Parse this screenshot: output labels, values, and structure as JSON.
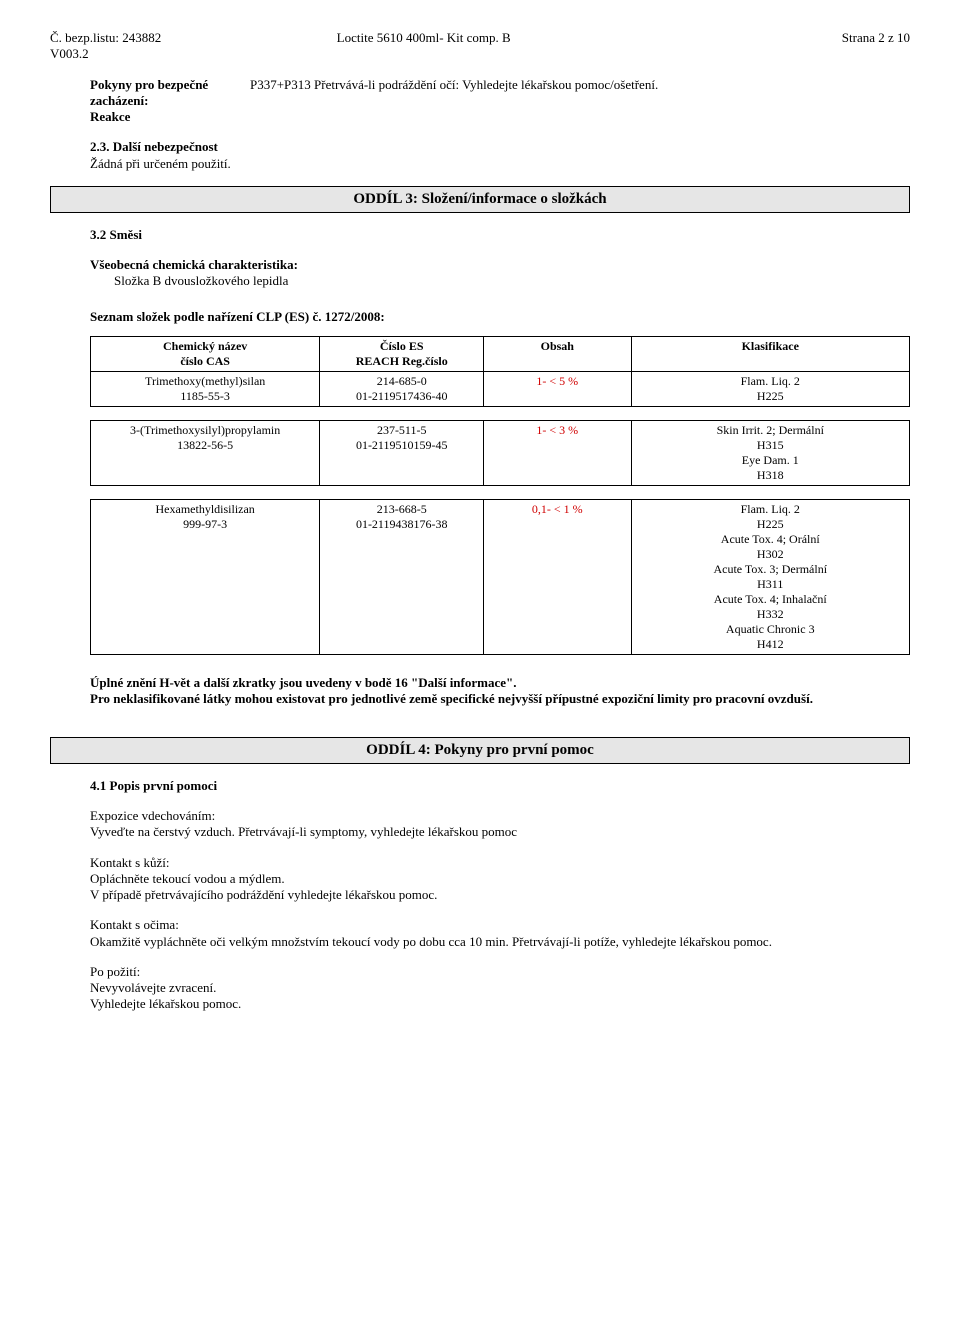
{
  "header": {
    "doc_no_label": "Č. bezp.listu:",
    "doc_no": "243882",
    "version": "V003.2",
    "product": "Loctite 5610 400ml- Kit comp. B",
    "page": "Strana 2 z 10"
  },
  "handling": {
    "label_line1": "Pokyny pro bezpečné",
    "label_line2": "zacházení:",
    "label_line3": "Reakce",
    "text": "P337+P313 Přetrvává-li podráždění očí: Vyhledejte lékařskou pomoc/ošetření."
  },
  "hazards": {
    "heading": "2.3. Další nebezpečnost",
    "text": "Žádná při určeném použití."
  },
  "section3": {
    "title": "ODDÍL 3: Složení/informace o složkách",
    "mix_heading": "3.2 Směsi",
    "char_label": "Všeobecná chemická charakteristika:",
    "char_text": "Složka B dvousložkového lepidla",
    "list_heading": "Seznam složek podle nařízení CLP (ES) č. 1272/2008:",
    "table": {
      "headers": {
        "name": "Chemický název\nčíslo CAS",
        "ec": "Číslo ES\nREACH Reg.číslo",
        "content": "Obsah",
        "class": "Klasifikace"
      },
      "rows": [
        {
          "name": "Trimethoxy(methyl)silan\n1185-55-3",
          "ec": "214-685-0\n01-2119517436-40",
          "content": "1- <   5 %",
          "content_is_red": true,
          "class": "Flam. Liq. 2\nH225"
        },
        {
          "name": "3-(Trimethoxysilyl)propylamin\n13822-56-5",
          "ec": "237-511-5\n01-2119510159-45",
          "content": "1- <   3 %",
          "content_is_red": true,
          "class": "Skin Irrit. 2;  Dermální\nH315\nEye Dam. 1\nH318"
        },
        {
          "name": "Hexamethyldisilizan\n999-97-3",
          "ec": "213-668-5\n01-2119438176-38",
          "content": "0,1- <   1 %",
          "content_is_red": true,
          "class": "Flam. Liq. 2\nH225\nAcute Tox. 4;  Orální\nH302\nAcute Tox. 3;  Dermální\nH311\nAcute Tox. 4;  Inhalační\nH332\nAquatic Chronic 3\nH412"
        }
      ]
    },
    "footer_line1": "Úplné znění H-vět a další zkratky jsou uvedeny v bodě 16 \"Další informace\".",
    "footer_line2": "Pro neklasifikované látky mohou existovat pro jednotlivé země specifické nejvyšší přípustné expoziční limity pro pracovní ovzduší."
  },
  "section4": {
    "title": "ODDÍL 4: Pokyny pro první pomoc",
    "desc_heading": "4.1 Popis první pomoci",
    "inhalation_label": "Expozice vdechováním:",
    "inhalation_text": "Vyveďte na čerstvý vzduch. Přetrvávají-li symptomy, vyhledejte lékařskou pomoc",
    "skin_label": "Kontakt s kůží:",
    "skin_text1": "Opláchněte tekoucí vodou a mýdlem.",
    "skin_text2": "V případě přetrvávajícího podráždění vyhledejte lékařskou pomoc.",
    "eyes_label": "Kontakt s očima:",
    "eyes_text": "Okamžitě vypláchněte oči velkým množstvím tekoucí vody po dobu cca 10 min. Přetrvávají-li potíže, vyhledejte lékařskou pomoc.",
    "ingest_label": "Po požití:",
    "ingest_text1": "Nevyvolávejte zvracení.",
    "ingest_text2": "Vyhledejte lékařskou pomoc."
  }
}
